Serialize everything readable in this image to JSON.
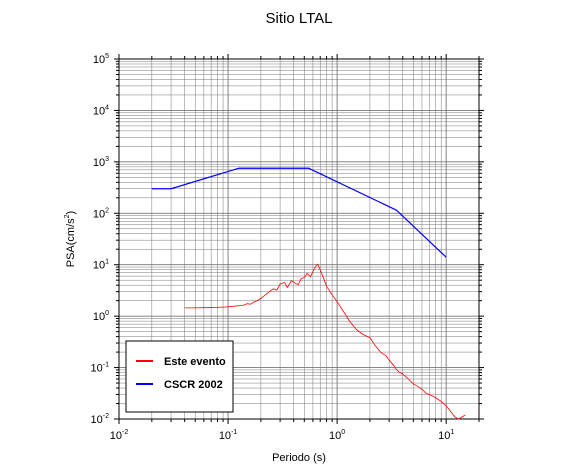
{
  "chart_data": {
    "type": "line",
    "title": "Sitio LTAL",
    "xlabel": "Periodo (s)",
    "ylabel": "PSA(cm/s2)",
    "xscale": "log",
    "yscale": "log",
    "xlim": [
      0.01,
      20
    ],
    "ylim": [
      0.01,
      100000
    ],
    "grid": true,
    "x_tick_labels": [
      {
        "base": "10",
        "exp": "-2",
        "value": 0.01
      },
      {
        "base": "10",
        "exp": "-1",
        "value": 0.1
      },
      {
        "base": "10",
        "exp": "0",
        "value": 1
      },
      {
        "base": "10",
        "exp": "1",
        "value": 10
      }
    ],
    "y_tick_labels": [
      {
        "base": "10",
        "exp": "-2",
        "value": 0.01
      },
      {
        "base": "10",
        "exp": "-1",
        "value": 0.1
      },
      {
        "base": "10",
        "exp": "0",
        "value": 1
      },
      {
        "base": "10",
        "exp": "1",
        "value": 10
      },
      {
        "base": "10",
        "exp": "2",
        "value": 100
      },
      {
        "base": "10",
        "exp": "3",
        "value": 1000
      },
      {
        "base": "10",
        "exp": "4",
        "value": 10000
      },
      {
        "base": "10",
        "exp": "5",
        "value": 100000
      }
    ],
    "legend_position": "bottom-left",
    "series": [
      {
        "name": "Este evento",
        "color": "#ff0000",
        "points": [
          [
            0.04,
            1.45
          ],
          [
            0.05,
            1.45
          ],
          [
            0.06,
            1.46
          ],
          [
            0.07,
            1.47
          ],
          [
            0.08,
            1.48
          ],
          [
            0.09,
            1.5
          ],
          [
            0.1,
            1.52
          ],
          [
            0.11,
            1.55
          ],
          [
            0.12,
            1.58
          ],
          [
            0.13,
            1.6
          ],
          [
            0.14,
            1.65
          ],
          [
            0.15,
            1.75
          ],
          [
            0.16,
            1.7
          ],
          [
            0.17,
            1.85
          ],
          [
            0.18,
            1.95
          ],
          [
            0.2,
            2.2
          ],
          [
            0.22,
            2.6
          ],
          [
            0.24,
            3.0
          ],
          [
            0.26,
            3.4
          ],
          [
            0.28,
            3.2
          ],
          [
            0.3,
            4.2
          ],
          [
            0.33,
            4.5
          ],
          [
            0.35,
            3.6
          ],
          [
            0.38,
            4.9
          ],
          [
            0.41,
            4.4
          ],
          [
            0.44,
            4.1
          ],
          [
            0.47,
            5.4
          ],
          [
            0.5,
            5.6
          ],
          [
            0.53,
            6.8
          ],
          [
            0.57,
            5.8
          ],
          [
            0.6,
            7.4
          ],
          [
            0.63,
            9.0
          ],
          [
            0.66,
            10.3
          ],
          [
            0.7,
            8.0
          ],
          [
            0.75,
            5.5
          ],
          [
            0.8,
            3.8
          ],
          [
            0.9,
            2.6
          ],
          [
            1.0,
            1.9
          ],
          [
            1.1,
            1.4
          ],
          [
            1.2,
            1.05
          ],
          [
            1.3,
            0.8
          ],
          [
            1.5,
            0.55
          ],
          [
            1.7,
            0.45
          ],
          [
            2.0,
            0.38
          ],
          [
            2.2,
            0.28
          ],
          [
            2.5,
            0.2
          ],
          [
            2.8,
            0.17
          ],
          [
            3.0,
            0.14
          ],
          [
            3.3,
            0.11
          ],
          [
            3.6,
            0.085
          ],
          [
            4.0,
            0.075
          ],
          [
            4.5,
            0.06
          ],
          [
            5.0,
            0.048
          ],
          [
            5.5,
            0.043
          ],
          [
            6.0,
            0.038
          ],
          [
            6.5,
            0.032
          ],
          [
            7.0,
            0.03
          ],
          [
            8.0,
            0.026
          ],
          [
            9.0,
            0.022
          ],
          [
            10.0,
            0.018
          ],
          [
            11.0,
            0.014
          ],
          [
            12.0,
            0.011
          ],
          [
            13.0,
            0.01
          ],
          [
            14.0,
            0.011
          ],
          [
            15.0,
            0.012
          ]
        ]
      },
      {
        "name": "CSCR 2002",
        "color": "#0000ff",
        "points": [
          [
            0.02,
            300
          ],
          [
            0.03,
            300
          ],
          [
            0.125,
            750
          ],
          [
            0.55,
            750
          ],
          [
            3.5,
            115
          ],
          [
            10.0,
            14
          ]
        ]
      }
    ]
  }
}
